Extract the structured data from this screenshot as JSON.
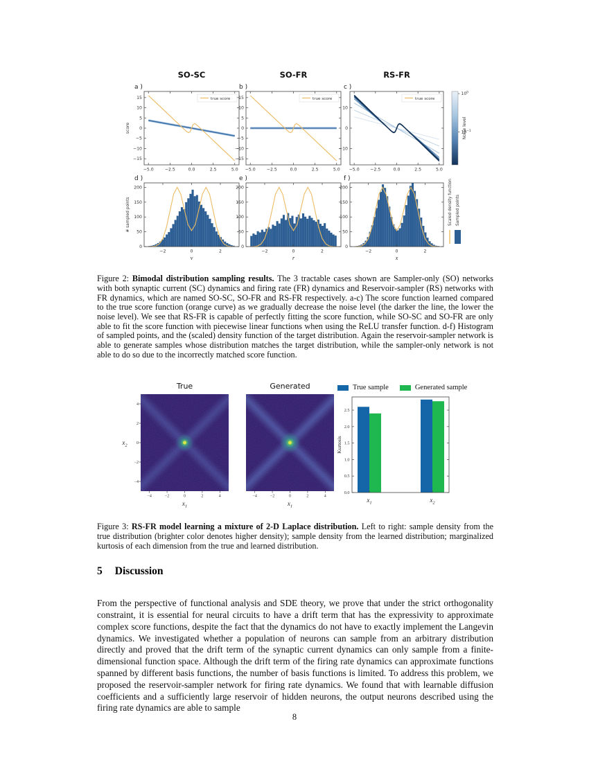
{
  "colors": {
    "orange": "#ecbb63",
    "learned_blue": "#3a6ea8",
    "learned_halo": "#b9d0e6",
    "hist_fill": "#2d5f94",
    "frame": "#444444",
    "bar_blue": "#1565a9",
    "bar_green": "#1fb850",
    "heat_bg": "#2b1262",
    "heat_arm": "#5f82cd",
    "heat_core": "#d9e54a",
    "heat_glow_inner": "#55c16a",
    "heat_glow_mid": "#2e8f8a",
    "colorbar_stops": [
      "#eaf1f8",
      "#a6c6e0",
      "#5382b3",
      "#123158"
    ]
  },
  "figure2": {
    "density": {
      "x": [
        -3,
        -2.75,
        -2.5,
        -2.25,
        -2,
        -1.75,
        -1.5,
        -1.25,
        -1,
        -0.75,
        -0.5,
        -0.25,
        0,
        0.25,
        0.5,
        0.75,
        1,
        1.25,
        1.5,
        1.75,
        2,
        2.25,
        2.5,
        2.75,
        3
      ],
      "y": [
        0,
        0.5,
        2,
        9,
        27,
        65,
        121,
        177,
        200,
        177,
        124,
        74,
        54,
        74,
        124,
        177,
        200,
        177,
        121,
        65,
        27,
        9,
        2,
        0.5,
        0
      ]
    },
    "caption": {
      "prefix": "Figure 2: ",
      "bold": "Bimodal distribution sampling results.",
      "rest": " The 3 tractable cases shown are Sampler-only (SO) networks with both synaptic current (SC) dynamics and firing rate (FR) dynamics and Reservoir-sampler (RS) networks with FR dynamics, which are named SO-SC, SO-FR and RS-FR respectively. a-c) The score function learned compared to the true score function (orange curve) as we gradually decrease the noise level (the darker the line, the lower the noise level). We see that RS-FR is capable of perfectly fitting the score function, while SO-SC and SO-FR are only able to fit the score function with piecewise linear functions when using the ReLU transfer function. d-f) Histogram of sampled points, and the (scaled) density function of the target distribution. Again the reservoir-sampler network is able to generate samples whose distribution matches the target distribution, while the sampler-only network is not able to do so due to the incorrectly matched score function."
    }
  },
  "figure3": {
    "caption": {
      "prefix": "Figure 3: ",
      "bold": "RS-FR model learning a mixture of 2-D Laplace distribution.",
      "rest": " Left to right: sample density from the true distribution (brighter color denotes higher density); sample density from the learned distribution; marginalized kurtosis of each dimension from the true and learned distribution."
    }
  },
  "section": {
    "number": "5",
    "title": "Discussion",
    "paragraph": "From the perspective of functional analysis and SDE theory, we prove that under the strict orthogonality constraint, it is essential for neural circuits to have a drift term that has the expressivity to approximate complex score functions, despite the fact that the dynamics do not have to exactly implement the Langevin dynamics. We investigated whether a population of neurons can sample from an arbitrary distribution directly and proved that the drift term of the synaptic current dynamics can only sample from a finite-dimensional function space. Although the drift term of the firing rate dynamics can approximate functions spanned by different basis functions, the number of basis functions is limited. To address this problem, we proposed the reservoir-sampler network for firing rate dynamics. We found that with learnable diffusion coefficients and a sufficiently large reservoir of hidden neurons, the output neurons described using the firing rate dynamics are able to sample"
  },
  "page": {
    "number": "8"
  },
  "chart_data": [
    {
      "id": "fig2a",
      "type": "line",
      "title": "SO-SC",
      "panel_label": "a )",
      "xlim": [
        -5.5,
        5.5
      ],
      "ylim": [
        -18,
        18
      ],
      "xticks": {
        "values": [
          -5,
          -2.5,
          0,
          2.5,
          5
        ],
        "labels": [
          "−5.0",
          "−2.5",
          "0.0",
          "2.5",
          "5.0"
        ]
      },
      "yticks": {
        "values": [
          15,
          10,
          5,
          0,
          -5,
          -10,
          -15
        ],
        "labels": [
          "15",
          "10",
          "5",
          "0",
          "−5",
          "−10",
          "−15"
        ]
      },
      "ylabel": "score",
      "legend_label": "true score",
      "true_score": {
        "x": [
          -5,
          -4,
          -3,
          -2,
          -1.5,
          -1.2,
          -1,
          -0.7,
          -0.5,
          -0.35,
          -0.2,
          -0.1,
          0,
          0.1,
          0.2,
          0.35,
          0.5,
          0.7,
          1,
          1.2,
          1.5,
          2,
          3,
          4,
          5
        ],
        "y": [
          16,
          12,
          8,
          4,
          2,
          0.8,
          0,
          -1.2,
          -1.9,
          -2.2,
          -1.9,
          -1.1,
          0,
          1.1,
          1.9,
          2.2,
          1.9,
          1.2,
          0,
          -0.8,
          -2,
          -4,
          -8,
          -12,
          -16
        ]
      },
      "learned": [
        {
          "color": "#3a6ea8",
          "halo": true,
          "width": 1.6,
          "x": [
            -5,
            5
          ],
          "y": [
            3.8,
            -3.8
          ]
        }
      ]
    },
    {
      "id": "fig2b",
      "type": "line",
      "title": "SO-FR",
      "panel_label": "b )",
      "xlim": [
        -5.5,
        5.5
      ],
      "ylim": [
        -18,
        18
      ],
      "xticks": {
        "values": [
          -5,
          -2.5,
          0,
          2.5,
          5
        ],
        "labels": [
          "−5.0",
          "−2.5",
          "0.0",
          "2.5",
          "5.0"
        ]
      },
      "yticks": {
        "values": [
          15,
          10,
          5,
          0,
          -5,
          -10,
          -15
        ],
        "labels": [
          "15",
          "10",
          "5",
          "0",
          "−5",
          "−10",
          "−15"
        ]
      },
      "legend_label": "true score",
      "true_score": {
        "x": [
          -5,
          -4,
          -3,
          -2,
          -1.5,
          -1.2,
          -1,
          -0.7,
          -0.5,
          -0.35,
          -0.2,
          -0.1,
          0,
          0.1,
          0.2,
          0.35,
          0.5,
          0.7,
          1,
          1.2,
          1.5,
          2,
          3,
          4,
          5
        ],
        "y": [
          16,
          12,
          8,
          4,
          2,
          0.8,
          0,
          -1.2,
          -1.9,
          -2.2,
          -1.9,
          -1.1,
          0,
          1.1,
          1.9,
          2.2,
          1.9,
          1.2,
          0,
          -0.8,
          -2,
          -4,
          -8,
          -12,
          -16
        ]
      },
      "learned": [
        {
          "color": "#3a6ea8",
          "halo": true,
          "width": 1.6,
          "x": [
            -5,
            5
          ],
          "y": [
            0,
            0
          ]
        }
      ]
    },
    {
      "id": "fig2c",
      "type": "line",
      "title": "RS-FR",
      "panel_label": "c )",
      "xlim": [
        -5.5,
        5.5
      ],
      "ylim": [
        -18,
        18
      ],
      "xticks": {
        "values": [
          -5,
          -2.5,
          0,
          2.5,
          5
        ],
        "labels": [
          "−5.0",
          "−2.5",
          "0.0",
          "2.5",
          "5.0"
        ]
      },
      "yticks": {
        "values": [
          10,
          0,
          -10
        ],
        "labels": [
          "10",
          "0",
          "−10"
        ]
      },
      "legend_label": "true score",
      "true_score": {
        "x": [
          -5,
          -4,
          -3,
          -2,
          -1.5,
          -1.2,
          -1,
          -0.7,
          -0.5,
          -0.35,
          -0.2,
          -0.1,
          0,
          0.1,
          0.2,
          0.35,
          0.5,
          0.7,
          1,
          1.2,
          1.5,
          2,
          3,
          4,
          5
        ],
        "y": [
          16,
          12,
          8,
          4,
          2,
          0.8,
          0,
          -1.2,
          -1.9,
          -2.2,
          -1.9,
          -1.1,
          0,
          1.1,
          1.9,
          2.2,
          1.9,
          1.2,
          0,
          -0.8,
          -2,
          -4,
          -8,
          -12,
          -16
        ]
      },
      "learned": [
        {
          "color": "#d4e2f0",
          "width": 0.9,
          "x": [
            -5,
            5
          ],
          "y": [
            5.5,
            -5.5
          ]
        },
        {
          "color": "#bcd2e8",
          "width": 0.9,
          "x": [
            -5,
            5
          ],
          "y": [
            8.8,
            -8.8
          ]
        },
        {
          "color": "#9dbcd9",
          "width": 0.9,
          "x": [
            -5,
            5
          ],
          "y": [
            12.3,
            -12.3
          ]
        },
        {
          "color": "#5585b5",
          "width": 1.1,
          "scale": 0.9
        },
        {
          "color": "#2e5d8e",
          "width": 1.2,
          "scale": 0.95
        },
        {
          "color": "#1d4473",
          "width": 1.3,
          "scale": 0.98
        },
        {
          "color": "#122f52",
          "width": 1.4,
          "scale": 1.01
        }
      ],
      "colorbar": {
        "label": "Noise level",
        "ticks": [
          {
            "base": "10",
            "exp": "0",
            "pos": 0.03
          },
          {
            "base": "10",
            "exp": "−1",
            "pos": 0.55
          }
        ]
      }
    },
    {
      "id": "fig2d",
      "type": "histogram",
      "panel_label": "d )",
      "xlim": [
        -3.3,
        3.3
      ],
      "ylim": [
        0,
        215
      ],
      "xticks": {
        "values": [
          -2,
          0,
          2
        ],
        "labels": [
          "−2",
          "0",
          "2"
        ]
      },
      "yticks": {
        "values": [
          0,
          50,
          100,
          150,
          200
        ],
        "labels": [
          "0",
          "50",
          "100",
          "150",
          "200"
        ]
      },
      "xlabel": "v",
      "ylabel": "# sampled points",
      "bin_start": -3,
      "bin_width": 0.15,
      "counts": [
        2,
        3,
        5,
        8,
        12,
        17,
        24,
        31,
        41,
        49,
        62,
        76,
        90,
        104,
        119,
        133,
        126,
        150,
        163,
        178,
        192,
        170,
        174,
        152,
        141,
        130,
        119,
        107,
        94,
        79,
        66,
        51,
        40,
        32,
        24,
        17,
        12,
        8,
        5,
        3
      ]
    },
    {
      "id": "fig2e",
      "type": "histogram",
      "panel_label": "e )",
      "xlim": [
        -3.3,
        3.3
      ],
      "ylim": [
        0,
        215
      ],
      "xticks": {
        "values": [
          -2,
          0,
          2
        ],
        "labels": [
          "−2",
          "0",
          "2"
        ]
      },
      "yticks": {
        "values": [
          0,
          50,
          100,
          150,
          200
        ],
        "labels": [
          "0",
          "50",
          "100",
          "150",
          "200"
        ]
      },
      "xlabel": "r",
      "bin_start": -3,
      "bin_width": 0.15,
      "counts": [
        36,
        44,
        40,
        52,
        48,
        57,
        50,
        60,
        66,
        60,
        74,
        70,
        86,
        78,
        95,
        107,
        90,
        113,
        96,
        104,
        78,
        100,
        108,
        95,
        112,
        101,
        94,
        104,
        97,
        89,
        84,
        91,
        77,
        70,
        79,
        61,
        54,
        47,
        41,
        37
      ]
    },
    {
      "id": "fig2f",
      "type": "histogram",
      "panel_label": "f )",
      "xlim": [
        -3.3,
        3.3
      ],
      "ylim": [
        0,
        215
      ],
      "xticks": {
        "values": [
          -2,
          0,
          2
        ],
        "labels": [
          "−2",
          "0",
          "2"
        ]
      },
      "yticks": {
        "values": [
          0,
          50,
          100,
          150,
          200
        ],
        "labels": [
          "0",
          "50",
          "100",
          "150",
          "200"
        ]
      },
      "xlabel": "x",
      "bin_start": -3,
      "bin_width": 0.15,
      "counts": [
        1,
        2,
        4,
        7,
        12,
        20,
        32,
        50,
        72,
        100,
        130,
        158,
        185,
        210,
        198,
        170,
        135,
        100,
        75,
        60,
        55,
        62,
        80,
        105,
        140,
        172,
        205,
        215,
        188,
        160,
        128,
        98,
        70,
        48,
        30,
        18,
        11,
        6,
        3,
        2
      ],
      "legend": [
        "Scaled density function",
        "Sampled points"
      ]
    },
    {
      "id": "fig3_true",
      "type": "heatmap",
      "title": "True",
      "xlim": [
        -5,
        5
      ],
      "ylim": [
        -5,
        5
      ],
      "xticks": {
        "values": [
          -4,
          -2,
          0,
          2,
          4
        ],
        "labels": [
          "−4",
          "−2",
          "0",
          "2",
          "4"
        ]
      },
      "yticks": {
        "values": [
          -4,
          -2,
          0,
          2,
          4
        ],
        "labels": [
          "−4",
          "−2",
          "0",
          "2",
          "4"
        ]
      },
      "xlabel": {
        "base": "x",
        "sub": "1"
      },
      "ylabel": {
        "base": "x",
        "sub": "2"
      },
      "show_yticks": true,
      "pattern": "X-shaped diagonal ridges, bright peak at (0,0), brighter = higher density"
    },
    {
      "id": "fig3_generated",
      "type": "heatmap",
      "title": "Generated",
      "xlim": [
        -5,
        5
      ],
      "ylim": [
        -5,
        5
      ],
      "xticks": {
        "values": [
          -4,
          -2,
          0,
          2,
          4
        ],
        "labels": [
          "−4",
          "−2",
          "0",
          "2",
          "4"
        ]
      },
      "yticks": {
        "values": [
          -4,
          -2,
          0,
          2,
          4
        ],
        "labels": [
          "−4",
          "−2",
          "0",
          "2",
          "4"
        ]
      },
      "xlabel": {
        "base": "x",
        "sub": "1"
      },
      "show_yticks": false,
      "pattern": "X-shaped diagonal ridges (slightly stronger arms), bright peak at (0,0)"
    },
    {
      "id": "fig3_kurtosis",
      "type": "bar",
      "ylabel": "Kurtosis",
      "ylim": [
        0,
        2.9
      ],
      "yticks": {
        "values": [
          0,
          0.5,
          1,
          1.5,
          2,
          2.5
        ],
        "labels": [
          "0.0",
          "0.5",
          "1.0",
          "1.5",
          "2.0",
          "2.5"
        ]
      },
      "categories": [
        {
          "base": "x",
          "sub": "1"
        },
        {
          "base": "x",
          "sub": "2"
        }
      ],
      "series": [
        {
          "name": "True sample",
          "color": "#1565a9",
          "values": [
            2.6,
            2.82
          ]
        },
        {
          "name": "Generated sample",
          "color": "#1fb850",
          "values": [
            2.4,
            2.77
          ]
        }
      ]
    }
  ]
}
